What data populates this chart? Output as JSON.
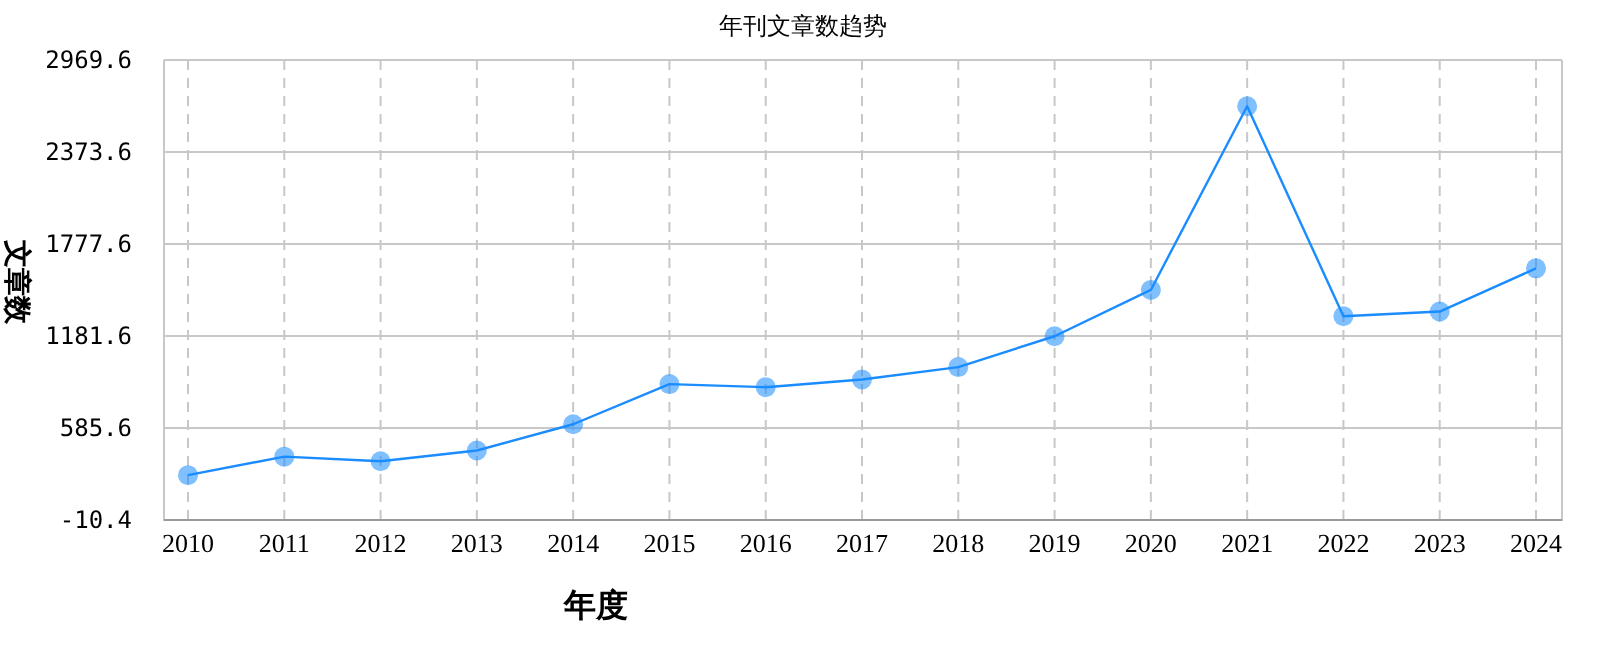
{
  "chart_data": {
    "type": "line",
    "title": "年刊文章数趋势",
    "xlabel": "年度",
    "ylabel": "文章数",
    "categories": [
      "2010",
      "2011",
      "2012",
      "2013",
      "2014",
      "2015",
      "2016",
      "2017",
      "2018",
      "2019",
      "2020",
      "2021",
      "2022",
      "2023",
      "2024"
    ],
    "series": [
      {
        "color": "#1a8cff",
        "values": [
          280,
          400,
          370,
          440,
          610,
          870,
          850,
          900,
          980,
          1180,
          1480,
          2670,
          1310,
          1340,
          1620
        ]
      }
    ],
    "ylim": [
      -10.4,
      2969.6
    ],
    "yticks": [
      -10.4,
      585.6,
      1181.6,
      1777.6,
      2373.6,
      2969.6
    ],
    "grid": true,
    "marker": "circle",
    "line_style": "solid"
  }
}
